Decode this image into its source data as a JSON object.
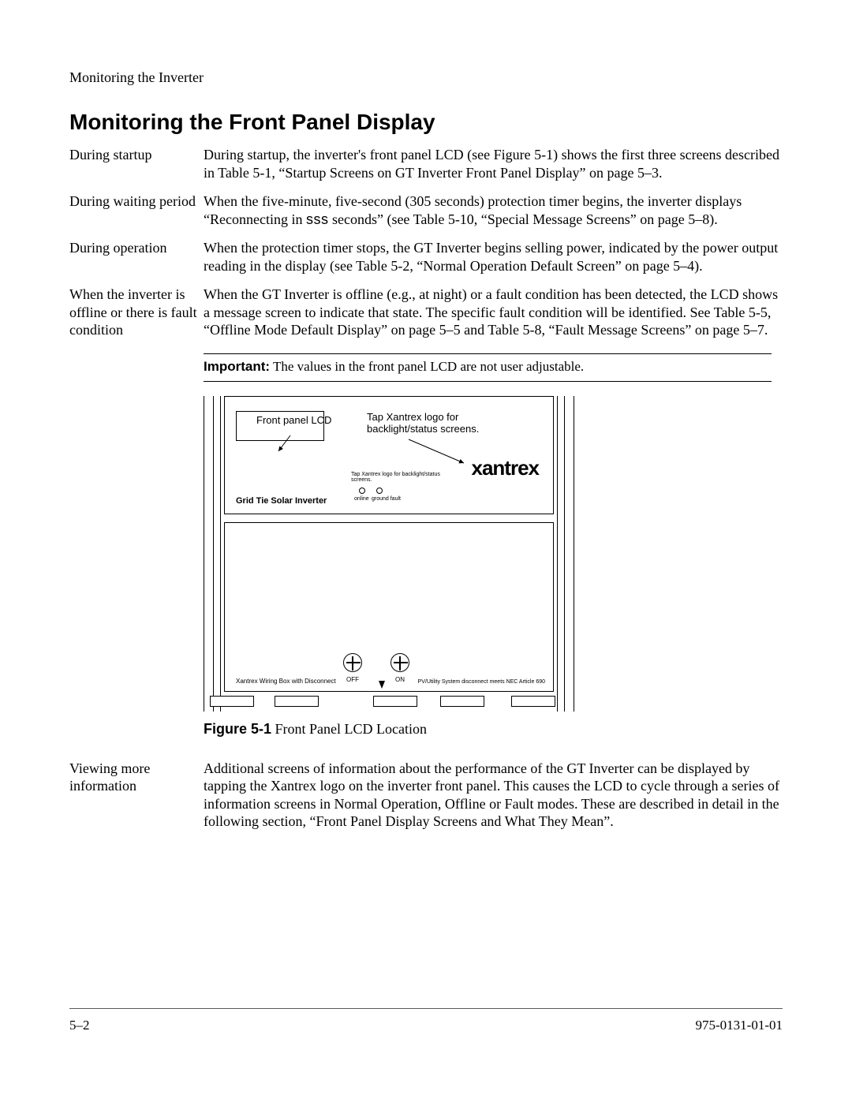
{
  "running_head": "Monitoring the Inverter",
  "title": "Monitoring the Front Panel Display",
  "defs": [
    {
      "term": "During startup",
      "desc": "During startup, the inverter's front panel LCD (see Figure 5-1) shows the first three screens described in Table 5-1, “Startup Screens on GT Inverter Front Panel Display” on page 5–3."
    },
    {
      "term": "During waiting period",
      "desc_pre": "When the five-minute, five-second (305 seconds) protection timer begins, the inverter displays “Reconnecting in ",
      "desc_sss": "sss",
      "desc_post": " seconds” (see Table 5-10, “Special Message Screens” on page 5–8)."
    },
    {
      "term": "During operation",
      "desc": "When the protection timer stops, the GT Inverter begins selling power, indicated by the power output reading in the display (see Table 5-2, “Normal Operation Default Screen” on page 5–4)."
    },
    {
      "term": "When the inverter is offline or there is fault condition",
      "desc": "When the GT Inverter is offline (e.g., at night) or a fault condition has been detected, the LCD shows a message screen to indicate that state. The specific fault condition will be identified. See Table 5-5, “Offline Mode Default Display” on page 5–5 and Table 5-8, “Fault Message Screens” on page 5–7."
    }
  ],
  "note": {
    "label": "Important:",
    "text": "The values in the front panel LCD are not user adjustable."
  },
  "figure": {
    "callout_lcd": "Front panel LCD",
    "callout_logo": "Tap Xantrex logo for backlight/status screens.",
    "brand": "xantrex",
    "tiny_tap": "Tap Xantrex logo for backlight/status screens.",
    "product": "Grid Tie Solar Inverter",
    "led1": "online",
    "led2": "ground fault",
    "wiring": "Xantrex Wiring Box with Disconnect",
    "off": "OFF",
    "on": "ON",
    "nec": "PV/Utility System disconnect meets NEC Article 690",
    "caption_label": "Figure 5-1",
    "caption_text": "Front Panel LCD Location"
  },
  "view_more": {
    "term": "Viewing more information",
    "desc": "Additional screens of information about the performance of the GT Inverter can be displayed by tapping the Xantrex logo on the inverter front panel. This causes the LCD to cycle through a series of information screens in Normal Operation, Offline or Fault modes. These are described in detail in the following section, “Front Panel Display Screens and What They Mean”."
  },
  "footer": {
    "left": "5–2",
    "right": "975-0131-01-01"
  },
  "colors": {
    "text": "#000000",
    "rule": "#5a5a5a",
    "bg": "#ffffff"
  },
  "tabs_x": [
    8,
    90,
    215,
    300,
    390
  ],
  "tab_w": 56
}
